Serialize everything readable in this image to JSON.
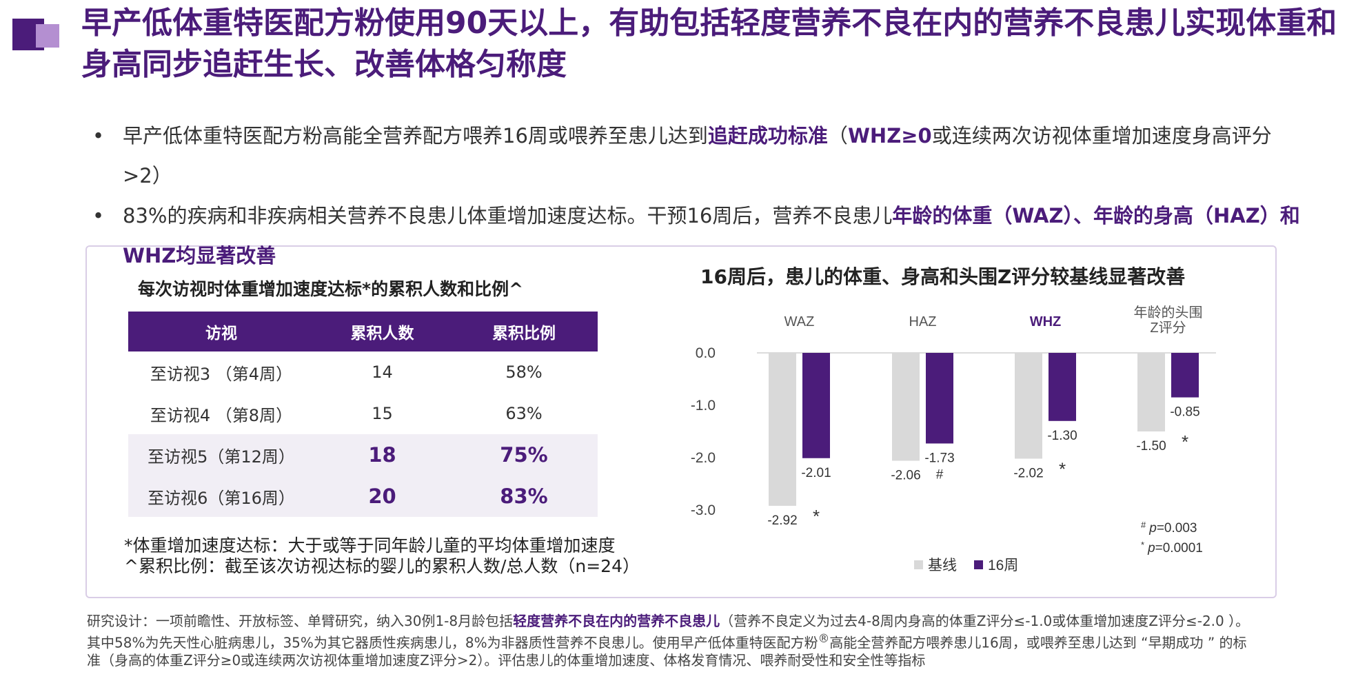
{
  "title": "早产低体重特医配方粉使用90天以上，有助包括轻度营养不良在内的营养不良患儿实现体重和身高同步追赶生长、改善体格匀称度",
  "bullets": [
    {
      "dot": "•",
      "t1": "早产低体重特医配方粉高能全营养配方喂养16周或喂养至患儿达到",
      "t2": "追赶成功标准",
      "t3": "（",
      "t4": "WHZ≥0",
      "t5": "或连续两次访视体重增加速度身高评分>2）"
    },
    {
      "dot": "•",
      "t1": "83%的疾病和非疾病相关营养不良患儿体重增加速度达标。干预16周后，营养不良患儿",
      "t2": "年龄的体重（WAZ）、年龄的身高（HAZ）和WHZ均显著改善"
    }
  ],
  "table": {
    "title": "每次访视时体重增加速度达标*的累积人数和比例^",
    "headers": [
      "访视",
      "累积人数",
      "累积比例"
    ],
    "rows": [
      {
        "visit": "至访视3 （第4周）",
        "count": "14",
        "pct": "58%"
      },
      {
        "visit": "至访视4 （第8周）",
        "count": "15",
        "pct": "63%"
      },
      {
        "visit": "至访视5（第12周）",
        "count": "18",
        "pct": "75%"
      },
      {
        "visit": "至访视6（第16周）",
        "count": "20",
        "pct": "83%"
      }
    ]
  },
  "footnotes": {
    "a": "*体重增加速度达标：大于或等于同年龄儿童的平均体重增加速度",
    "b": "^累积比例：截至该次访视达标的婴儿的累积人数/总人数（n=24）"
  },
  "colors": {
    "brand": "#4b1c7a",
    "brand_light": "#b48fd1",
    "baseline_bar": "#d9d9d9",
    "week16_bar": "#4b1c7a"
  },
  "chart_data": {
    "type": "bar",
    "title": "16周后，患儿的体重、身高和头围Z评分较基线显著改善",
    "categories": [
      "WAZ",
      "HAZ",
      "WHZ",
      "年龄的头围Z评分"
    ],
    "category_lines": [
      [
        "WAZ"
      ],
      [
        "HAZ"
      ],
      [
        "WHZ"
      ],
      [
        "年龄的头围",
        "Z评分"
      ]
    ],
    "highlight_category": "WHZ",
    "series": [
      {
        "name": "基线",
        "values": [
          -2.92,
          -2.06,
          -2.02,
          -1.5
        ],
        "labels": [
          "-2.92",
          "-2.06",
          "-2.02",
          "-1.50"
        ],
        "color": "#d9d9d9"
      },
      {
        "name": "16周",
        "values": [
          -2.01,
          -1.73,
          -1.3,
          -0.85
        ],
        "labels": [
          "-2.01",
          "-1.73",
          "-1.30",
          "-0.85"
        ],
        "color": "#4b1c7a"
      }
    ],
    "significance": [
      "*",
      "#",
      "*",
      "*"
    ],
    "yticks": [
      "0.0",
      "-1.0",
      "-2.0",
      "-3.0"
    ],
    "ylim": [
      -3.0,
      0.0
    ],
    "legend_position": "bottom",
    "pvalue_notes": [
      {
        "mark": "#",
        "p": "p",
        "value": "=0.003"
      },
      {
        "mark": "*",
        "p": "p",
        "value": "=0.0001"
      }
    ]
  },
  "study_design": {
    "p1": "研究设计：一项前瞻性、开放标签、单臂研究，纳入30例1-8月龄包括",
    "p2": "轻度营养不良在内的营养不良患儿",
    "p3": "（营养不良定义为过去4-8周内身高的体重Z评分≤-1.0或体重增加速度Z评分≤-2.0 ）。其中58%为先天性心脏病患儿，35%为其它器质性疾病患儿，8%为非器质性营养不良患儿。使用早产低体重特医配方粉",
    "sup": "®",
    "p4": "高能全营养配方喂养患儿16周，或喂养至患儿达到 “早期成功 ” 的标准（身高的体重Z评分≥0或连续两次访视体重增加速度Z评分>2）。评估患儿的体重增加速度、体格发育情况、喂养耐受性和安全性等指标"
  }
}
